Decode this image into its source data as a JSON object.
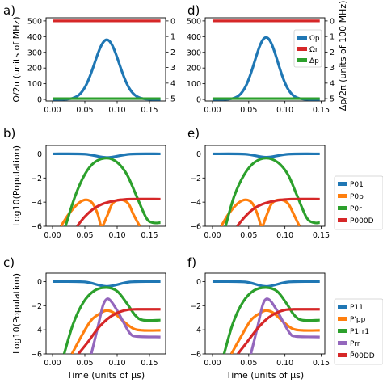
{
  "chart_data": [
    {
      "id": "a",
      "panel_label": "a)",
      "type": "line",
      "ylabel": "Ω/2π (units of MHz)",
      "y2label": "",
      "xlim": [
        -0.01,
        0.175
      ],
      "ylim": [
        -10,
        520
      ],
      "xticks": [
        "0.00",
        "0.05",
        "0.10",
        "0.15"
      ],
      "yticks": [
        0,
        100,
        200,
        300,
        400,
        500
      ],
      "y2ticks": [
        "0",
        "1",
        "2",
        "3",
        "4",
        "5"
      ],
      "series": [
        {
          "name": "Ωp",
          "color": "#1f77b4",
          "kind": "gauss",
          "amp": 380,
          "center": 0.084,
          "sigma": 0.019,
          "xmin": 0.0,
          "xmax": 0.167
        },
        {
          "name": "Ωr",
          "color": "#d62728",
          "kind": "const",
          "y": 500,
          "xmin": 0.0,
          "xmax": 0.167
        },
        {
          "name": "Δp",
          "color": "#2ca02c",
          "kind": "const",
          "y": 5,
          "xmin": 0.0,
          "xmax": 0.167
        }
      ]
    },
    {
      "id": "d",
      "panel_label": "d)",
      "type": "line",
      "ylabel": "",
      "y2label": "−Δp/2π (units of 100 MHz)",
      "xlim": [
        -0.01,
        0.155
      ],
      "ylim": [
        -10,
        520
      ],
      "xticks": [
        "0.00",
        "0.05",
        "0.10",
        "0.15"
      ],
      "yticks": [
        0,
        100,
        200,
        300,
        400,
        500
      ],
      "y2ticks": [
        "0",
        "1",
        "2",
        "3",
        "4",
        "5"
      ],
      "legend": [
        "Ωp",
        "Ωr",
        "Δp"
      ],
      "series": [
        {
          "name": "Ωp",
          "color": "#1f77b4",
          "kind": "gauss",
          "amp": 395,
          "center": 0.074,
          "sigma": 0.016,
          "xmin": 0.0,
          "xmax": 0.148
        },
        {
          "name": "Ωr",
          "color": "#d62728",
          "kind": "const",
          "y": 500,
          "xmin": 0.0,
          "xmax": 0.148
        },
        {
          "name": "Δp",
          "color": "#2ca02c",
          "kind": "const",
          "y": 5,
          "xmin": 0.0,
          "xmax": 0.148
        }
      ]
    },
    {
      "id": "b",
      "panel_label": "b)",
      "type": "line",
      "ylabel": "Log10(Population)",
      "xlim": [
        -0.01,
        0.175
      ],
      "ylim": [
        -6,
        0.7
      ],
      "xticks": [
        "0.00",
        "0.05",
        "0.10",
        "0.15"
      ],
      "yticks": [
        0,
        -2,
        -4,
        -6
      ],
      "series": [
        {
          "name": "P01",
          "color": "#1f77b4",
          "points": [
            [
              0,
              0
            ],
            [
              0.05,
              -0.02
            ],
            [
              0.084,
              -0.3
            ],
            [
              0.12,
              -0.02
            ],
            [
              0.167,
              0
            ]
          ]
        },
        {
          "name": "P0p",
          "color": "#ff7f0e",
          "points": [
            [
              0.013,
              -6
            ],
            [
              0.025,
              -5
            ],
            [
              0.04,
              -4.1
            ],
            [
              0.052,
              -3.8
            ],
            [
              0.062,
              -4.1
            ],
            [
              0.07,
              -5
            ],
            [
              0.076,
              -6
            ],
            [
              0.084,
              -5.2
            ],
            [
              0.093,
              -4.1
            ],
            [
              0.105,
              -3.8
            ],
            [
              0.117,
              -4.1
            ],
            [
              0.125,
              -5
            ],
            [
              0.135,
              -6
            ]
          ]
        },
        {
          "name": "P0r",
          "color": "#2ca02c",
          "points": [
            [
              0.02,
              -6
            ],
            [
              0.035,
              -3.5
            ],
            [
              0.05,
              -1.7
            ],
            [
              0.065,
              -0.7
            ],
            [
              0.084,
              -0.35
            ],
            [
              0.1,
              -0.7
            ],
            [
              0.115,
              -1.7
            ],
            [
              0.13,
              -3.5
            ],
            [
              0.145,
              -5.3
            ],
            [
              0.155,
              -5.7
            ],
            [
              0.167,
              -5.7
            ]
          ]
        },
        {
          "name": "P000D",
          "color": "#d62728",
          "points": [
            [
              0.038,
              -6
            ],
            [
              0.05,
              -5.2
            ],
            [
              0.065,
              -4.5
            ],
            [
              0.08,
              -4.1
            ],
            [
              0.1,
              -3.85
            ],
            [
              0.12,
              -3.75
            ],
            [
              0.167,
              -3.75
            ]
          ]
        }
      ]
    },
    {
      "id": "e",
      "panel_label": "e)",
      "type": "line",
      "xlim": [
        -0.01,
        0.155
      ],
      "ylim": [
        -6,
        0.7
      ],
      "xticks": [
        "0.00",
        "0.05",
        "0.10",
        "0.15"
      ],
      "yticks": [
        0,
        -2,
        -4,
        -6
      ],
      "legend": [
        "P01",
        "P0p",
        "P0r",
        "P000D"
      ],
      "series": [
        {
          "name": "P01",
          "color": "#1f77b4",
          "points": [
            [
              0,
              0
            ],
            [
              0.045,
              -0.02
            ],
            [
              0.074,
              -0.28
            ],
            [
              0.105,
              -0.02
            ],
            [
              0.148,
              0
            ]
          ]
        },
        {
          "name": "P0p",
          "color": "#ff7f0e",
          "points": [
            [
              0.012,
              -6
            ],
            [
              0.022,
              -5
            ],
            [
              0.035,
              -4.1
            ],
            [
              0.046,
              -3.8
            ],
            [
              0.055,
              -4.1
            ],
            [
              0.062,
              -5
            ],
            [
              0.068,
              -6
            ],
            [
              0.074,
              -5.2
            ],
            [
              0.082,
              -4.1
            ],
            [
              0.093,
              -3.8
            ],
            [
              0.104,
              -4.1
            ],
            [
              0.112,
              -5
            ],
            [
              0.12,
              -6
            ]
          ]
        },
        {
          "name": "P0r",
          "color": "#2ca02c",
          "points": [
            [
              0.018,
              -6
            ],
            [
              0.03,
              -3.5
            ],
            [
              0.044,
              -1.7
            ],
            [
              0.058,
              -0.7
            ],
            [
              0.074,
              -0.35
            ],
            [
              0.09,
              -0.7
            ],
            [
              0.104,
              -1.7
            ],
            [
              0.117,
              -3.5
            ],
            [
              0.13,
              -5.3
            ],
            [
              0.14,
              -5.7
            ],
            [
              0.148,
              -5.7
            ]
          ]
        },
        {
          "name": "P000D",
          "color": "#d62728",
          "points": [
            [
              0.034,
              -6
            ],
            [
              0.045,
              -5.2
            ],
            [
              0.058,
              -4.5
            ],
            [
              0.072,
              -4.1
            ],
            [
              0.09,
              -3.85
            ],
            [
              0.108,
              -3.75
            ],
            [
              0.148,
              -3.75
            ]
          ]
        }
      ]
    },
    {
      "id": "c",
      "panel_label": "c)",
      "type": "line",
      "ylabel": "Log10(Population)",
      "xlabel": "Time (units of μs)",
      "xlim": [
        -0.01,
        0.175
      ],
      "ylim": [
        -6,
        0.7
      ],
      "xticks": [
        "0.00",
        "0.05",
        "0.10",
        "0.15"
      ],
      "yticks": [
        0,
        -2,
        -4,
        -6
      ],
      "series": [
        {
          "name": "P11",
          "color": "#1f77b4",
          "points": [
            [
              0,
              0
            ],
            [
              0.05,
              -0.03
            ],
            [
              0.084,
              -0.4
            ],
            [
              0.12,
              -0.03
            ],
            [
              0.167,
              0
            ]
          ]
        },
        {
          "name": "P'pp",
          "color": "#ff7f0e",
          "points": [
            [
              0.03,
              -6
            ],
            [
              0.045,
              -4.5
            ],
            [
              0.06,
              -3.2
            ],
            [
              0.075,
              -2.6
            ],
            [
              0.084,
              -2.4
            ],
            [
              0.095,
              -2.6
            ],
            [
              0.11,
              -3.3
            ],
            [
              0.125,
              -3.9
            ],
            [
              0.14,
              -4.05
            ],
            [
              0.167,
              -4.05
            ]
          ]
        },
        {
          "name": "P1rr1",
          "color": "#2ca02c",
          "points": [
            [
              0.018,
              -6
            ],
            [
              0.032,
              -3.5
            ],
            [
              0.048,
              -1.7
            ],
            [
              0.065,
              -0.75
            ],
            [
              0.084,
              -0.5
            ],
            [
              0.1,
              -0.8
            ],
            [
              0.115,
              -1.8
            ],
            [
              0.128,
              -2.8
            ],
            [
              0.14,
              -3.2
            ],
            [
              0.167,
              -3.2
            ]
          ]
        },
        {
          "name": "Prr",
          "color": "#9467bd",
          "points": [
            [
              0.06,
              -6
            ],
            [
              0.07,
              -3.8
            ],
            [
              0.078,
              -2
            ],
            [
              0.084,
              -1.45
            ],
            [
              0.09,
              -1.6
            ],
            [
              0.1,
              -2.4
            ],
            [
              0.11,
              -3.4
            ],
            [
              0.12,
              -4.3
            ],
            [
              0.13,
              -4.55
            ],
            [
              0.167,
              -4.6
            ]
          ]
        },
        {
          "name": "P̃00DD",
          "color": "#d62728",
          "points": [
            [
              0.04,
              -6
            ],
            [
              0.055,
              -5
            ],
            [
              0.07,
              -3.9
            ],
            [
              0.085,
              -3.1
            ],
            [
              0.1,
              -2.6
            ],
            [
              0.115,
              -2.35
            ],
            [
              0.13,
              -2.3
            ],
            [
              0.167,
              -2.3
            ]
          ]
        }
      ]
    },
    {
      "id": "f",
      "panel_label": "f)",
      "type": "line",
      "xlabel": "Time (units of μs)",
      "xlim": [
        -0.01,
        0.155
      ],
      "ylim": [
        -6,
        0.7
      ],
      "xticks": [
        "0.00",
        "0.05",
        "0.10",
        "0.15"
      ],
      "yticks": [
        0,
        -2,
        -4,
        -6
      ],
      "legend": [
        "P11",
        "P'pp",
        "P1rr1",
        "Prr",
        "P̃00DD"
      ],
      "series": [
        {
          "name": "P11",
          "color": "#1f77b4",
          "points": [
            [
              0,
              0
            ],
            [
              0.045,
              -0.03
            ],
            [
              0.074,
              -0.4
            ],
            [
              0.105,
              -0.03
            ],
            [
              0.148,
              0
            ]
          ]
        },
        {
          "name": "P'pp",
          "color": "#ff7f0e",
          "points": [
            [
              0.026,
              -6
            ],
            [
              0.04,
              -4.5
            ],
            [
              0.053,
              -3.2
            ],
            [
              0.066,
              -2.6
            ],
            [
              0.074,
              -2.4
            ],
            [
              0.084,
              -2.6
            ],
            [
              0.097,
              -3.3
            ],
            [
              0.11,
              -3.9
            ],
            [
              0.124,
              -4.05
            ],
            [
              0.148,
              -4.05
            ]
          ]
        },
        {
          "name": "P1rr1",
          "color": "#2ca02c",
          "points": [
            [
              0.016,
              -6
            ],
            [
              0.028,
              -3.5
            ],
            [
              0.042,
              -1.7
            ],
            [
              0.057,
              -0.75
            ],
            [
              0.074,
              -0.5
            ],
            [
              0.089,
              -0.8
            ],
            [
              0.102,
              -1.8
            ],
            [
              0.113,
              -2.8
            ],
            [
              0.124,
              -3.2
            ],
            [
              0.148,
              -3.2
            ]
          ]
        },
        {
          "name": "Prr",
          "color": "#9467bd",
          "points": [
            [
              0.053,
              -6
            ],
            [
              0.062,
              -3.8
            ],
            [
              0.069,
              -2
            ],
            [
              0.074,
              -1.45
            ],
            [
              0.08,
              -1.6
            ],
            [
              0.089,
              -2.4
            ],
            [
              0.098,
              -3.4
            ],
            [
              0.107,
              -4.3
            ],
            [
              0.115,
              -4.55
            ],
            [
              0.148,
              -4.6
            ]
          ]
        },
        {
          "name": "P̃00DD",
          "color": "#d62728",
          "points": [
            [
              0.035,
              -6
            ],
            [
              0.048,
              -5
            ],
            [
              0.062,
              -3.9
            ],
            [
              0.075,
              -3.1
            ],
            [
              0.088,
              -2.6
            ],
            [
              0.1,
              -2.35
            ],
            [
              0.113,
              -2.3
            ],
            [
              0.148,
              -2.3
            ]
          ]
        }
      ]
    }
  ]
}
